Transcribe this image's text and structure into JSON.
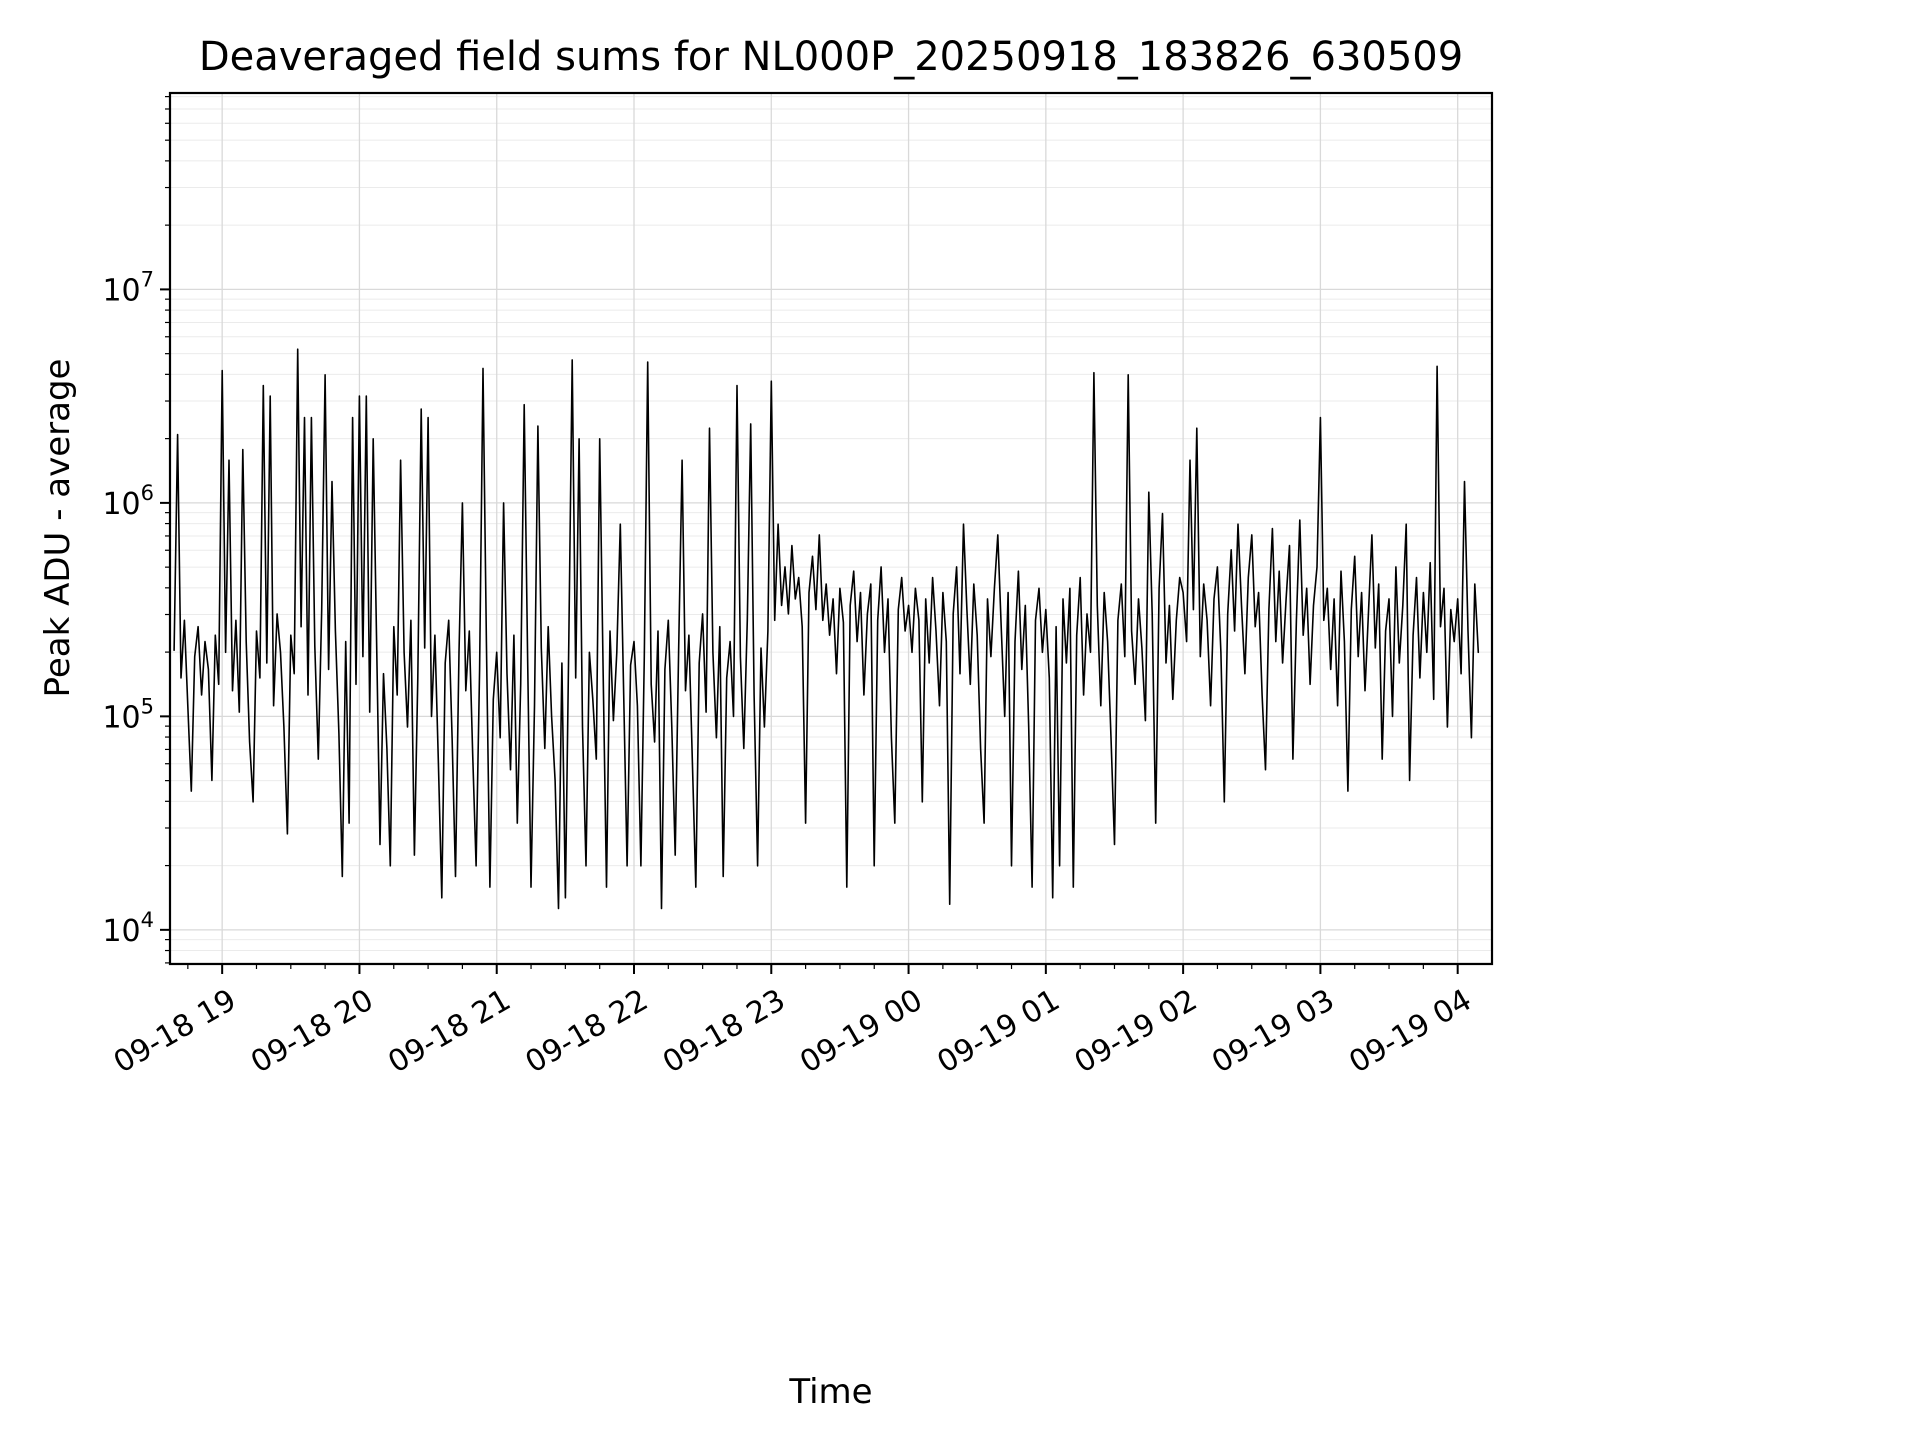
{
  "title": "Deaveraged field sums for NL000P_20250918_183826_630509",
  "chart_data": {
    "type": "line",
    "title": "Deaveraged field sums for NL000P_20250918_183826_630509",
    "xlabel": "Time",
    "ylabel": "Peak ADU - average",
    "yscale": "log",
    "grid": true,
    "legend": "none",
    "line_color": "#000000",
    "grid_major_color": "#d9d9d9",
    "grid_minor_color": "#ebebeb",
    "x_range_hours": [
      18.62,
      28.25
    ],
    "y_range_log10": [
      3.84,
      7.92
    ],
    "x_minor_step_hours": 0.25,
    "x_ticks": [
      {
        "hour": 19,
        "label": "09-18 19"
      },
      {
        "hour": 20,
        "label": "09-18 20"
      },
      {
        "hour": 21,
        "label": "09-18 21"
      },
      {
        "hour": 22,
        "label": "09-18 22"
      },
      {
        "hour": 23,
        "label": "09-18 23"
      },
      {
        "hour": 24,
        "label": "09-19 00"
      },
      {
        "hour": 25,
        "label": "09-19 01"
      },
      {
        "hour": 26,
        "label": "09-19 02"
      },
      {
        "hour": 27,
        "label": "09-19 03"
      },
      {
        "hour": 28,
        "label": "09-19 04"
      }
    ],
    "y_ticks": [
      {
        "exponent": 4,
        "label": "10^4"
      },
      {
        "exponent": 5,
        "label": "10^5"
      },
      {
        "exponent": 6,
        "label": "10^6"
      },
      {
        "exponent": 7,
        "label": "10^7"
      }
    ],
    "x_start_hours": 18.65,
    "x_step_hours": 0.025,
    "values_log10": [
      5.31,
      6.32,
      5.18,
      5.45,
      5.05,
      4.65,
      5.28,
      5.42,
      5.1,
      5.35,
      5.22,
      4.7,
      5.38,
      5.15,
      6.62,
      5.3,
      6.2,
      5.12,
      5.45,
      5.02,
      6.25,
      5.35,
      4.88,
      4.6,
      5.4,
      5.18,
      6.55,
      5.25,
      6.5,
      5.05,
      5.48,
      5.3,
      4.95,
      4.45,
      5.38,
      5.2,
      6.72,
      5.42,
      6.4,
      5.1,
      6.4,
      5.33,
      4.8,
      5.5,
      6.6,
      5.22,
      6.1,
      5.4,
      4.92,
      4.25,
      5.35,
      4.5,
      6.4,
      5.15,
      6.5,
      5.28,
      6.5,
      5.02,
      6.3,
      5.35,
      4.4,
      5.2,
      4.85,
      4.3,
      5.42,
      5.1,
      6.2,
      5.3,
      4.95,
      5.45,
      4.35,
      5.18,
      6.44,
      5.32,
      6.4,
      5.0,
      5.38,
      4.78,
      4.15,
      5.25,
      5.45,
      4.9,
      4.25,
      5.3,
      6.0,
      5.12,
      5.4,
      4.82,
      4.3,
      5.22,
      6.63,
      5.35,
      4.2,
      5.08,
      5.3,
      4.9,
      6.0,
      5.2,
      4.75,
      5.38,
      4.5,
      5.15,
      6.46,
      5.28,
      4.2,
      5.05,
      6.36,
      5.32,
      4.85,
      5.42,
      5.0,
      4.7,
      4.1,
      5.25,
      4.15,
      5.35,
      6.67,
      5.18,
      6.3,
      4.95,
      4.3,
      5.3,
      5.08,
      4.8,
      6.3,
      5.22,
      4.2,
      5.4,
      4.98,
      5.3,
      5.9,
      5.1,
      4.3,
      5.24,
      5.35,
      5.05,
      4.3,
      5.28,
      6.66,
      5.15,
      4.88,
      5.4,
      4.1,
      5.22,
      5.45,
      4.95,
      4.35,
      5.3,
      6.2,
      5.12,
      5.38,
      4.8,
      4.2,
      5.25,
      5.48,
      5.02,
      6.35,
      5.3,
      4.9,
      5.42,
      4.25,
      5.18,
      5.35,
      5.0,
      6.55,
      5.28,
      4.85,
      5.45,
      6.37,
      5.1,
      4.3,
      5.32,
      4.95,
      5.4,
      6.57,
      5.45,
      5.9,
      5.52,
      5.7,
      5.48,
      5.8,
      5.55,
      5.65,
      5.42,
      4.5,
      5.58,
      5.75,
      5.5,
      5.85,
      5.45,
      5.62,
      5.38,
      5.55,
      5.2,
      5.6,
      5.44,
      4.2,
      5.52,
      5.68,
      5.35,
      5.58,
      5.1,
      5.48,
      5.62,
      4.3,
      5.45,
      5.7,
      5.3,
      5.55,
      4.9,
      4.5,
      5.5,
      5.65,
      5.4,
      5.52,
      5.3,
      5.6,
      5.45,
      4.6,
      5.55,
      5.25,
      5.65,
      5.4,
      5.05,
      5.58,
      5.35,
      4.12,
      5.48,
      5.7,
      5.2,
      5.9,
      5.5,
      5.15,
      5.62,
      5.38,
      4.85,
      4.5,
      5.55,
      5.28,
      5.6,
      5.85,
      5.42,
      5.0,
      5.58,
      4.3,
      5.35,
      5.68,
      5.22,
      5.52,
      4.95,
      4.2,
      5.45,
      5.6,
      5.3,
      5.5,
      5.18,
      4.15,
      5.42,
      4.3,
      5.55,
      5.25,
      5.6,
      4.2,
      5.38,
      5.65,
      5.1,
      5.48,
      5.3,
      6.61,
      5.52,
      5.05,
      5.58,
      5.35,
      4.9,
      4.4,
      5.45,
      5.62,
      5.28,
      6.6,
      5.4,
      5.15,
      5.55,
      5.32,
      4.98,
      6.05,
      5.48,
      4.5,
      5.6,
      5.95,
      5.25,
      5.52,
      5.08,
      5.45,
      5.65,
      5.58,
      5.35,
      6.2,
      5.5,
      6.35,
      5.28,
      5.62,
      5.45,
      5.05,
      5.55,
      5.7,
      5.3,
      4.6,
      5.48,
      5.78,
      5.4,
      5.9,
      5.52,
      5.2,
      5.65,
      5.85,
      5.42,
      5.58,
      5.1,
      4.75,
      5.5,
      5.88,
      5.35,
      5.68,
      5.25,
      5.55,
      5.8,
      4.8,
      5.45,
      5.92,
      5.38,
      5.6,
      5.15,
      5.52,
      5.7,
      6.4,
      5.45,
      5.6,
      5.22,
      5.55,
      5.05,
      5.68,
      5.35,
      4.65,
      5.5,
      5.75,
      5.28,
      5.58,
      5.12,
      5.48,
      5.85,
      5.32,
      5.62,
      4.8,
      5.4,
      5.55,
      5.0,
      5.7,
      5.25,
      5.52,
      5.9,
      4.7,
      5.38,
      5.65,
      5.18,
      5.58,
      5.3,
      5.72,
      5.08,
      6.64,
      5.42,
      5.6,
      4.95,
      5.5,
      5.35,
      5.55,
      5.2,
      6.1,
      5.4,
      4.9,
      5.62,
      5.3
    ]
  }
}
